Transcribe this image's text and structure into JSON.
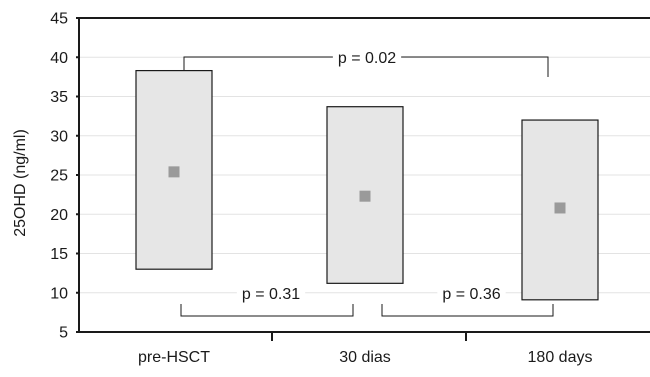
{
  "chart_data": {
    "type": "box",
    "title": "",
    "xlabel": "",
    "ylabel": "25OHD (ng/ml)",
    "ylim": [
      5,
      45
    ],
    "yticks": [
      5,
      10,
      15,
      20,
      25,
      30,
      35,
      40,
      45
    ],
    "grid": true,
    "categories": [
      "pre-HSCT",
      "30 dias",
      "180 days"
    ],
    "boxes": [
      {
        "category": "pre-HSCT",
        "low": 13.0,
        "high": 38.3,
        "median": 25.4
      },
      {
        "category": "30 dias",
        "low": 11.2,
        "high": 33.7,
        "median": 22.3
      },
      {
        "category": "180 days",
        "low": 9.1,
        "high": 32.0,
        "median": 20.8
      }
    ],
    "annotations": [
      {
        "label": "p = 0.02",
        "from": "pre-HSCT",
        "to": "180 days",
        "position": "top"
      },
      {
        "label": "p = 0.31",
        "from": "pre-HSCT",
        "to": "30 dias",
        "position": "bottom"
      },
      {
        "label": "p = 0.36",
        "from": "30 dias",
        "to": "180 days",
        "position": "bottom"
      }
    ],
    "colors": {
      "box_fill": "#e6e6e6",
      "median_marker": "#9a9a9a",
      "grid": "#e3e3e3",
      "axis": "#1a1a1a"
    }
  }
}
